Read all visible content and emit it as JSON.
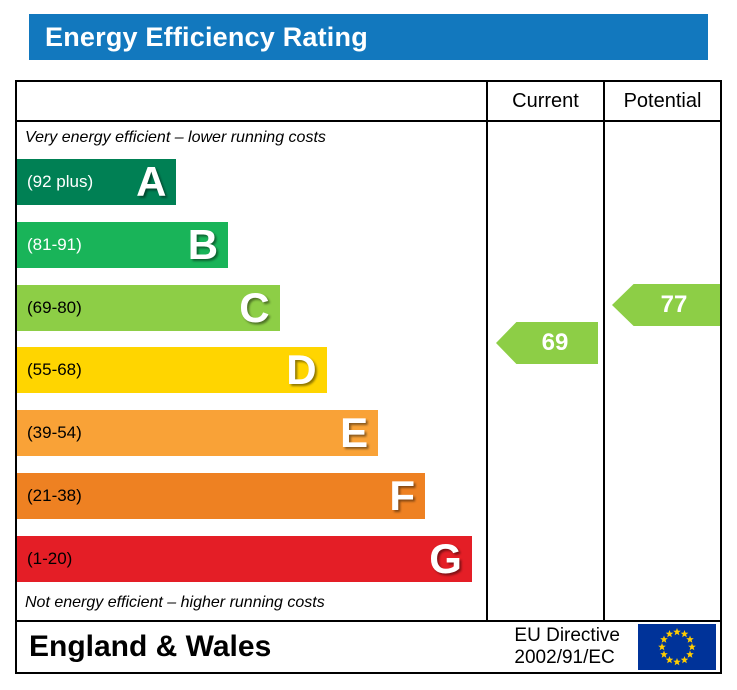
{
  "title": "Energy Efficiency Rating",
  "header": {
    "current_label": "Current",
    "potential_label": "Potential"
  },
  "notes": {
    "top": "Very energy efficient – lower running costs",
    "bottom": "Not energy efficient – higher running costs"
  },
  "bands": [
    {
      "letter": "A",
      "range": "(92 plus)",
      "color": "#008054",
      "text_color": "#ffffff",
      "width_pct": 34
    },
    {
      "letter": "B",
      "range": "(81-91)",
      "color": "#19b459",
      "text_color": "#ffffff",
      "width_pct": 45
    },
    {
      "letter": "C",
      "range": "(69-80)",
      "color": "#8dce46",
      "text_color": "#000000",
      "width_pct": 56
    },
    {
      "letter": "D",
      "range": "(55-68)",
      "color": "#ffd500",
      "text_color": "#000000",
      "width_pct": 66
    },
    {
      "letter": "E",
      "range": "(39-54)",
      "color": "#f9a237",
      "text_color": "#000000",
      "width_pct": 77
    },
    {
      "letter": "F",
      "range": "(21-38)",
      "color": "#ee8122",
      "text_color": "#000000",
      "width_pct": 87
    },
    {
      "letter": "G",
      "range": "(1-20)",
      "color": "#e41e26",
      "text_color": "#000000",
      "width_pct": 97
    }
  ],
  "ratings": {
    "current": 69,
    "potential": 77,
    "arrow_color": "#8dce46"
  },
  "footer": {
    "region": "England & Wales",
    "directive_line1": "EU Directive",
    "directive_line2": "2002/91/EC"
  },
  "colors": {
    "title_bg": "#1278be",
    "eu_blue": "#003399",
    "eu_star": "#ffcc00"
  },
  "chart_data": {
    "type": "bar",
    "title": "Energy Efficiency Rating",
    "categories": [
      "A",
      "B",
      "C",
      "D",
      "E",
      "F",
      "G"
    ],
    "band_ranges": [
      "92 plus",
      "81-91",
      "69-80",
      "55-68",
      "39-54",
      "21-38",
      "1-20"
    ],
    "band_colors": [
      "#008054",
      "#19b459",
      "#8dce46",
      "#ffd500",
      "#f9a237",
      "#ee8122",
      "#e41e26"
    ],
    "bar_widths_pct": [
      34,
      45,
      56,
      66,
      77,
      87,
      97
    ],
    "columns": [
      "Current",
      "Potential"
    ],
    "current_rating": 69,
    "potential_rating": 77,
    "current_band": "C",
    "potential_band": "C",
    "top_note": "Very energy efficient – lower running costs",
    "bottom_note": "Not energy efficient – higher running costs",
    "region": "England & Wales",
    "directive": "EU Directive 2002/91/EC"
  }
}
